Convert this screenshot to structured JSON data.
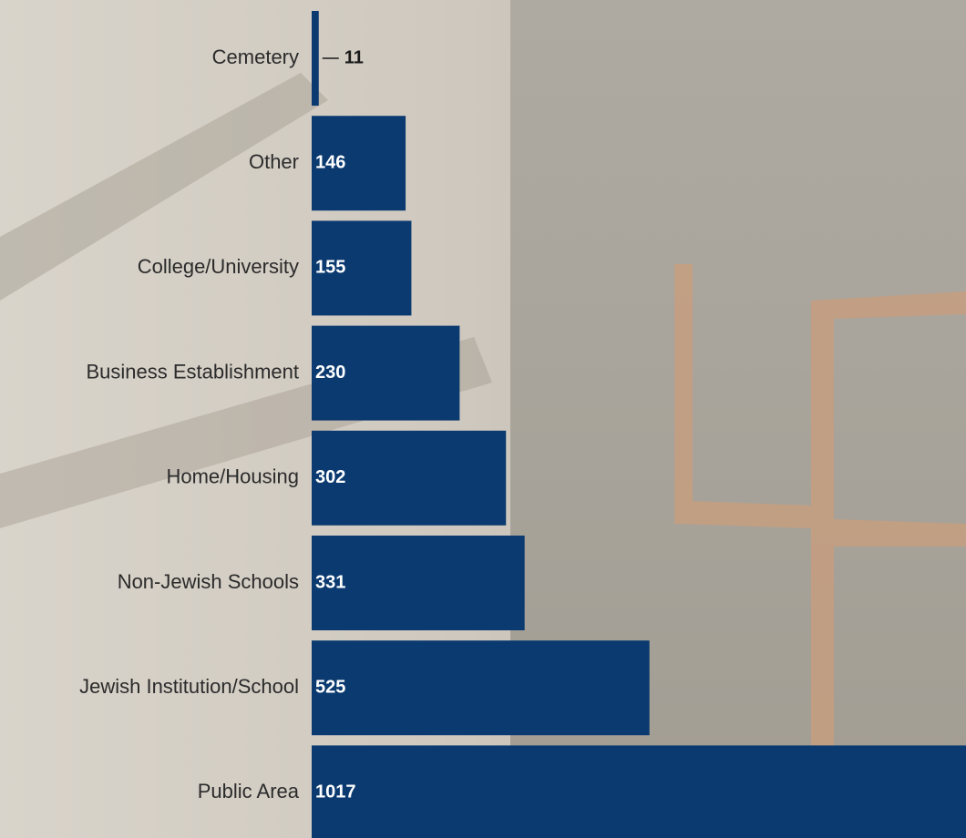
{
  "chart_data": {
    "type": "bar",
    "orientation": "horizontal",
    "categories": [
      "Cemetery",
      "Other",
      "College/University",
      "Business Establishment",
      "Home/Housing",
      "Non-Jewish Schools",
      "Jewish Institution/School",
      "Public Area"
    ],
    "values": [
      11,
      146,
      155,
      230,
      302,
      331,
      525,
      1017
    ],
    "color": "#0b3a70"
  }
}
